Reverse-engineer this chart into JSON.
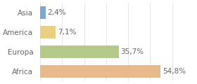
{
  "categories": [
    "Africa",
    "Europa",
    "America",
    "Asia"
  ],
  "values": [
    54.8,
    35.7,
    7.1,
    2.4
  ],
  "labels": [
    "54,8%",
    "35,7%",
    "7,1%",
    "2,4%"
  ],
  "bar_colors": [
    "#e8b98a",
    "#b5c98a",
    "#e8d080",
    "#7fa8d0"
  ],
  "background_color": "#ffffff",
  "xlim": [
    0,
    70
  ],
  "label_fontsize": 7.5,
  "category_fontsize": 7.5,
  "grid_color": "#dddddd",
  "text_color": "#666666"
}
